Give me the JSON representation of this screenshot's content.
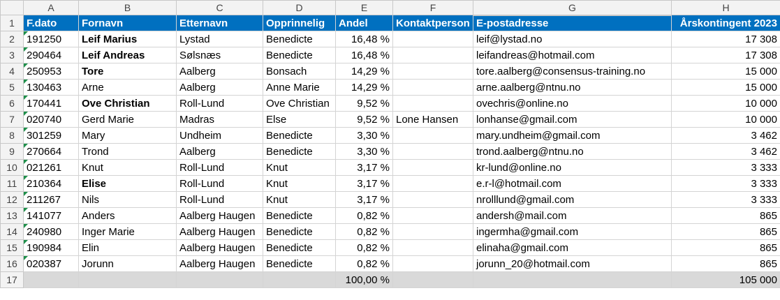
{
  "column_letters": [
    "A",
    "B",
    "C",
    "D",
    "E",
    "F",
    "G",
    "H"
  ],
  "row_numbers": [
    "1",
    "2",
    "3",
    "4",
    "5",
    "6",
    "7",
    "8",
    "9",
    "10",
    "11",
    "12",
    "13",
    "14",
    "15",
    "16",
    "17"
  ],
  "selected_column": "G",
  "table": {
    "header": [
      "F.dato",
      "Fornavn",
      "Etternavn",
      "Opprinnelig",
      "Andel",
      "Kontaktperson",
      "E-postadresse",
      "Årskontingent 2023"
    ],
    "rows": [
      [
        "191250",
        "Leif Marius",
        "Lystad",
        "Benedicte",
        "16,48 %",
        null,
        "leif@lystad.no",
        "17 308"
      ],
      [
        "290464",
        "Leif Andreas",
        "Sølsnæs",
        "Benedicte",
        "16,48 %",
        null,
        "leifandreas@hotmail.com",
        "17 308"
      ],
      [
        "250953",
        "Tore",
        "Aalberg",
        "Bonsach",
        "14,29 %",
        null,
        "tore.aalberg@consensus-training.no",
        "15 000"
      ],
      [
        "130463",
        "Arne",
        "Aalberg",
        "Anne Marie",
        "14,29 %",
        null,
        "arne.aalberg@ntnu.no",
        "15 000"
      ],
      [
        "170441",
        "Ove Christian",
        "Roll-Lund",
        "Ove Christian",
        "9,52 %",
        null,
        "ovechris@online.no",
        "10 000"
      ],
      [
        "020740",
        "Gerd Marie",
        "Madras",
        "Else",
        "9,52 %",
        "Lone Hansen",
        "lonhanse@gmail.com",
        "10 000"
      ],
      [
        "301259",
        "Mary",
        "Undheim",
        "Benedicte",
        "3,30 %",
        null,
        "mary.undheim@gmail.com",
        "3 462"
      ],
      [
        "270664",
        "Trond",
        "Aalberg",
        "Benedicte",
        "3,30 %",
        null,
        "trond.aalberg@ntnu.no",
        "3 462"
      ],
      [
        "021261",
        "Knut",
        "Roll-Lund",
        "Knut",
        "3,17 %",
        null,
        "kr-lund@online.no",
        "3 333"
      ],
      [
        "210364",
        "Elise",
        "Roll-Lund",
        "Knut",
        "3,17 %",
        null,
        "e.r-l@hotmail.com",
        "3 333"
      ],
      [
        "211267",
        "Nils",
        "Roll-Lund",
        "Knut",
        "3,17 %",
        null,
        "nrolllund@gmail.com",
        "3 333"
      ],
      [
        "141077",
        "Anders",
        "Aalberg Haugen",
        "Benedicte",
        "0,82 %",
        null,
        "andersh@mail.com",
        "865"
      ],
      [
        "240980",
        "Inger Marie",
        "Aalberg Haugen",
        "Benedicte",
        "0,82 %",
        null,
        "ingermha@gmail.com",
        "865"
      ],
      [
        "190984",
        "Elin",
        "Aalberg Haugen",
        "Benedicte",
        "0,82 %",
        null,
        "elinaha@gmail.com",
        "865"
      ],
      [
        "020387",
        "Jorunn",
        "Aalberg Haugen",
        "Benedicte",
        "0,82 %",
        null,
        "jorunn_20@hotmail.com",
        "865"
      ]
    ],
    "bold_first_name": [
      true,
      true,
      true,
      false,
      true,
      false,
      false,
      false,
      false,
      true,
      false,
      false,
      false,
      false,
      false
    ],
    "totals": [
      null,
      null,
      null,
      null,
      "100,00 %",
      null,
      null,
      "105 000"
    ]
  }
}
